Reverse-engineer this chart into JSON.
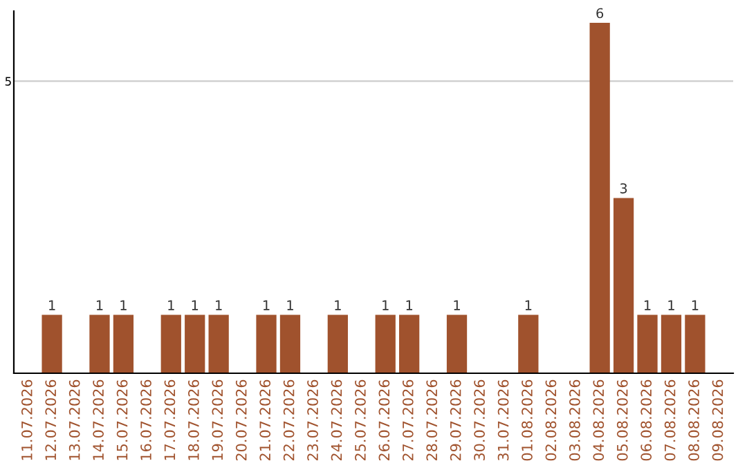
{
  "chart_data": {
    "type": "bar",
    "categories": [
      "11.07.2026",
      "12.07.2026",
      "13.07.2026",
      "14.07.2026",
      "15.07.2026",
      "16.07.2026",
      "17.07.2026",
      "18.07.2026",
      "19.07.2026",
      "20.07.2026",
      "21.07.2026",
      "22.07.2026",
      "23.07.2026",
      "24.07.2026",
      "25.07.2026",
      "26.07.2026",
      "27.07.2026",
      "28.07.2026",
      "29.07.2026",
      "30.07.2026",
      "31.07.2026",
      "01.08.2026",
      "02.08.2026",
      "03.08.2026",
      "04.08.2026",
      "05.08.2026",
      "06.08.2026",
      "07.08.2026",
      "08.08.2026",
      "09.08.2026"
    ],
    "values": [
      0,
      1,
      0,
      1,
      1,
      0,
      1,
      1,
      1,
      0,
      1,
      1,
      0,
      1,
      0,
      1,
      1,
      0,
      1,
      0,
      0,
      1,
      0,
      0,
      6,
      3,
      1,
      1,
      1,
      0
    ],
    "value_labels": [
      null,
      "1",
      null,
      "1",
      "1",
      null,
      "1",
      "1",
      "1",
      null,
      "1",
      "1",
      null,
      "1",
      null,
      "1",
      "1",
      null,
      "1",
      null,
      null,
      "1",
      null,
      null,
      "6",
      "3",
      "1",
      "1",
      "1",
      null
    ],
    "color": "#a0522d",
    "ylim": [
      0,
      6.2
    ],
    "yticks": [
      5
    ],
    "grid": "y"
  }
}
